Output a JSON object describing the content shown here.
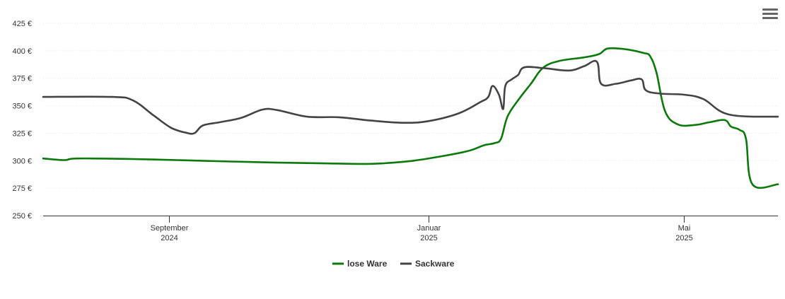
{
  "chart_data": {
    "type": "line",
    "title": "",
    "xlabel": "",
    "ylabel": "",
    "ylim": [
      250,
      425
    ],
    "xlim": [
      "2024-07-04",
      "2025-06-14"
    ],
    "y_ticks": [
      {
        "value": 425,
        "label": "425 €"
      },
      {
        "value": 400,
        "label": "400 €"
      },
      {
        "value": 375,
        "label": "375 €"
      },
      {
        "value": 350,
        "label": "350 €"
      },
      {
        "value": 325,
        "label": "325 €"
      },
      {
        "value": 300,
        "label": "300 €"
      },
      {
        "value": 275,
        "label": "275 €"
      },
      {
        "value": 250,
        "label": "250 €"
      }
    ],
    "x_ticks": [
      {
        "date": "2024-09-01",
        "line1": "September",
        "line2": "2024"
      },
      {
        "date": "2025-01-01",
        "line1": "Januar",
        "line2": "2025"
      },
      {
        "date": "2025-05-01",
        "line1": "Mai",
        "line2": "2025"
      }
    ],
    "grid": true,
    "legend": "bottom-center",
    "series": [
      {
        "name": "lose Ware",
        "color": "#0a7a0a",
        "points": [
          [
            "2024-07-04",
            302
          ],
          [
            "2024-07-14",
            300.5
          ],
          [
            "2024-07-20",
            302
          ],
          [
            "2024-08-15",
            301.5
          ],
          [
            "2024-09-15",
            300
          ],
          [
            "2024-10-15",
            298.5
          ],
          [
            "2024-11-15",
            297.5
          ],
          [
            "2024-12-01",
            297
          ],
          [
            "2024-12-10",
            297.5
          ],
          [
            "2024-12-25",
            300
          ],
          [
            "2025-01-10",
            305
          ],
          [
            "2025-01-20",
            309
          ],
          [
            "2025-01-27",
            314
          ],
          [
            "2025-02-01",
            316
          ],
          [
            "2025-02-04",
            320
          ],
          [
            "2025-02-07",
            340
          ],
          [
            "2025-02-12",
            355
          ],
          [
            "2025-02-18",
            370
          ],
          [
            "2025-02-24",
            385
          ],
          [
            "2025-03-04",
            391
          ],
          [
            "2025-03-15",
            394
          ],
          [
            "2025-03-22",
            397
          ],
          [
            "2025-03-26",
            402
          ],
          [
            "2025-04-03",
            401.5
          ],
          [
            "2025-04-12",
            398
          ],
          [
            "2025-04-15",
            395
          ],
          [
            "2025-04-18",
            380
          ],
          [
            "2025-04-22",
            345
          ],
          [
            "2025-04-28",
            333
          ],
          [
            "2025-05-06",
            332.5
          ],
          [
            "2025-05-13",
            335
          ],
          [
            "2025-05-20",
            337
          ],
          [
            "2025-05-23",
            331
          ],
          [
            "2025-05-27",
            328
          ],
          [
            "2025-05-30",
            320
          ],
          [
            "2025-06-02",
            278.5
          ],
          [
            "2025-06-14",
            278.5
          ]
        ]
      },
      {
        "name": "Sackware",
        "color": "#434348",
        "points": [
          [
            "2024-07-04",
            358
          ],
          [
            "2024-08-05",
            358
          ],
          [
            "2024-08-15",
            355
          ],
          [
            "2024-08-25",
            341
          ],
          [
            "2024-09-02",
            330
          ],
          [
            "2024-09-09",
            325.5
          ],
          [
            "2024-09-13",
            325
          ],
          [
            "2024-09-17",
            332
          ],
          [
            "2024-09-25",
            335
          ],
          [
            "2024-10-05",
            339
          ],
          [
            "2024-10-15",
            346.5
          ],
          [
            "2024-10-22",
            346
          ],
          [
            "2024-11-05",
            340
          ],
          [
            "2024-11-20",
            339.5
          ],
          [
            "2024-12-05",
            336.5
          ],
          [
            "2024-12-20",
            334.5
          ],
          [
            "2025-01-01",
            336
          ],
          [
            "2025-01-15",
            343
          ],
          [
            "2025-01-25",
            353
          ],
          [
            "2025-01-29",
            358
          ],
          [
            "2025-01-31",
            368
          ],
          [
            "2025-02-03",
            360
          ],
          [
            "2025-02-05",
            347
          ],
          [
            "2025-02-06",
            368
          ],
          [
            "2025-02-09",
            374
          ],
          [
            "2025-02-12",
            378
          ],
          [
            "2025-02-15",
            385
          ],
          [
            "2025-02-25",
            384
          ],
          [
            "2025-03-08",
            382
          ],
          [
            "2025-03-15",
            386
          ],
          [
            "2025-03-21",
            390
          ],
          [
            "2025-03-23",
            370
          ],
          [
            "2025-03-30",
            370
          ],
          [
            "2025-04-06",
            373
          ],
          [
            "2025-04-11",
            374
          ],
          [
            "2025-04-13",
            364
          ],
          [
            "2025-04-20",
            361
          ],
          [
            "2025-05-01",
            360
          ],
          [
            "2025-05-10",
            356
          ],
          [
            "2025-05-22",
            342
          ],
          [
            "2025-06-14",
            340
          ]
        ]
      }
    ]
  }
}
